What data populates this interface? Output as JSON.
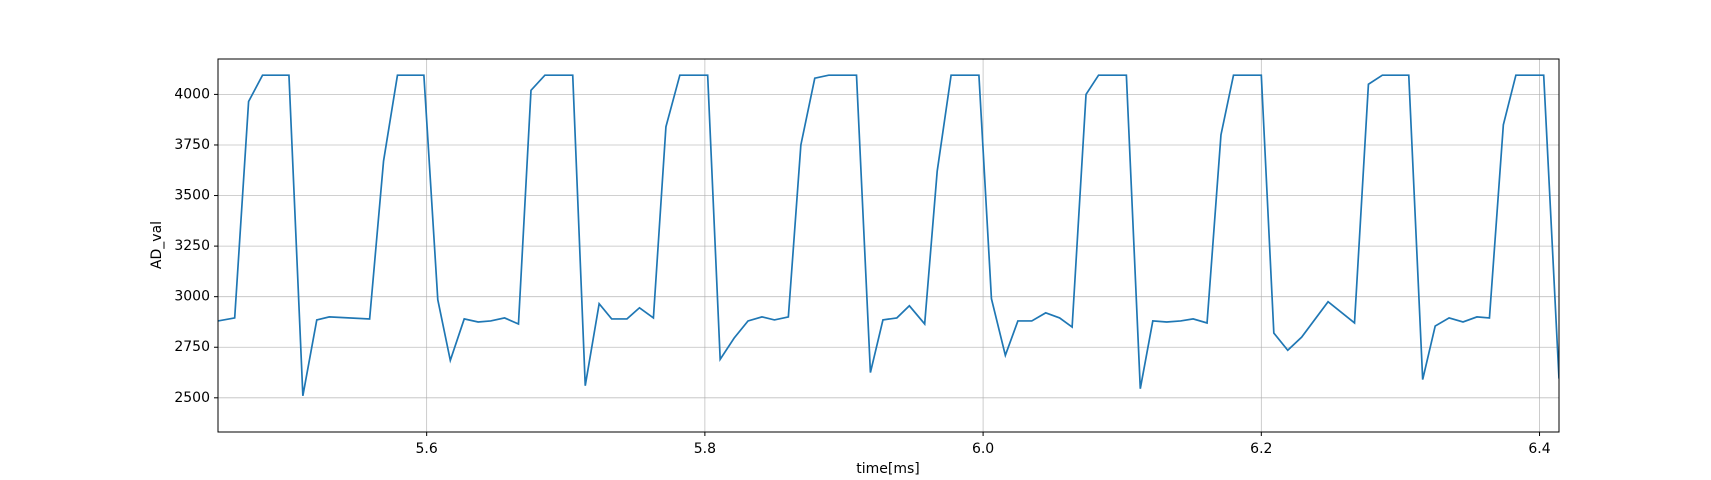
{
  "chart_data": {
    "type": "line",
    "xlabel": "time[ms]",
    "ylabel": "AD_val",
    "xlim": [
      5.45,
      6.414
    ],
    "ylim": [
      2331,
      4175
    ],
    "xticks": [
      5.6,
      5.8,
      {
        "value": 6.0,
        "label": "6.0"
      },
      6.2,
      6.4
    ],
    "yticks": [
      2500,
      2750,
      3000,
      3250,
      3500,
      3750,
      4000
    ],
    "grid": true,
    "x": [
      5.45,
      5.462,
      5.472,
      5.482,
      5.501,
      5.511,
      5.521,
      5.53,
      5.559,
      5.569,
      5.579,
      5.598,
      5.608,
      5.617,
      5.627,
      5.637,
      5.646,
      5.656,
      5.666,
      5.675,
      5.685,
      5.705,
      5.714,
      5.724,
      5.733,
      5.744,
      5.753,
      5.763,
      5.772,
      5.782,
      5.802,
      5.811,
      5.821,
      5.831,
      5.841,
      5.85,
      5.86,
      5.869,
      5.879,
      5.889,
      5.909,
      5.919,
      5.928,
      5.938,
      5.947,
      5.958,
      5.967,
      5.977,
      5.997,
      6.006,
      6.016,
      6.025,
      6.035,
      6.045,
      6.055,
      6.064,
      6.074,
      6.083,
      6.103,
      6.113,
      6.122,
      6.132,
      6.142,
      6.151,
      6.161,
      6.171,
      6.18,
      6.2,
      6.209,
      6.219,
      6.229,
      6.248,
      6.267,
      6.277,
      6.287,
      6.306,
      6.316,
      6.325,
      6.335,
      6.345,
      6.355,
      6.364,
      6.374,
      6.383,
      6.403,
      6.414
    ],
    "series": [
      {
        "color": "#1f77b4",
        "values": [
          2880,
          2895,
          3965,
          4095,
          4095,
          2510,
          2885,
          2900,
          2890,
          3670,
          4095,
          4095,
          2985,
          2685,
          2890,
          2875,
          2880,
          2895,
          2865,
          4020,
          4095,
          4095,
          2560,
          2965,
          2890,
          2890,
          2945,
          2895,
          3840,
          4095,
          4095,
          2690,
          2795,
          2880,
          2900,
          2885,
          2900,
          3750,
          4080,
          4095,
          4095,
          2625,
          2885,
          2895,
          2955,
          2865,
          3620,
          4095,
          4095,
          2990,
          2710,
          2880,
          2880,
          2920,
          2895,
          2850,
          4000,
          4095,
          4095,
          2545,
          2880,
          2875,
          2880,
          2890,
          2870,
          3800,
          4095,
          4095,
          2820,
          2735,
          2800,
          2975,
          2870,
          4050,
          4095,
          4095,
          2590,
          2855,
          2895,
          2875,
          2900,
          2895,
          3850,
          4095,
          4095,
          2595
        ]
      }
    ]
  }
}
